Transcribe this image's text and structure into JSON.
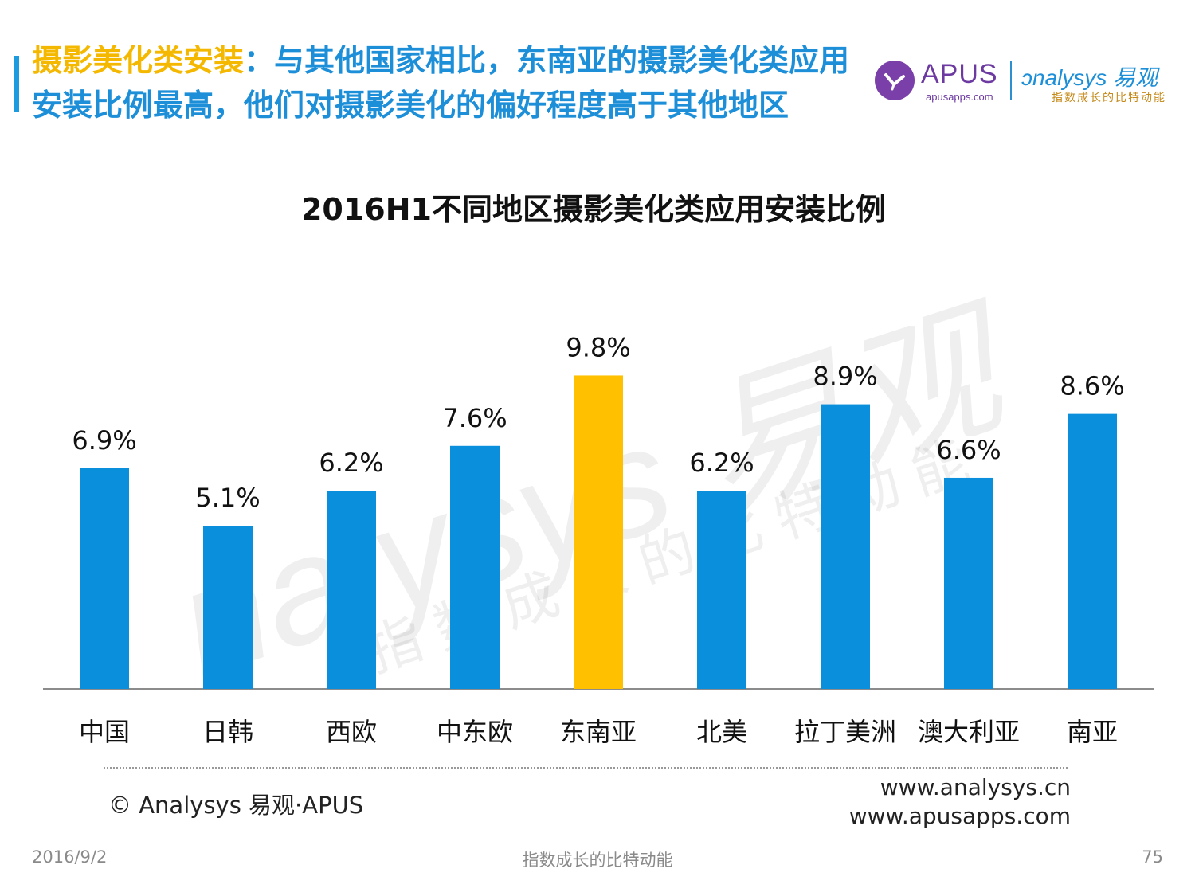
{
  "header": {
    "title_highlight": "摄影美化类安装",
    "title_rest": "：与其他国家相比，东南亚的摄影美化类应用安装比例最高，他们对摄影美化的偏好程度高于其他地区"
  },
  "logos": {
    "apus_name": "APUS",
    "apus_url": "apusapps.com",
    "analysys_name": "nalysys 易观",
    "analysys_slogan": "指数成长的比特动能"
  },
  "watermark": {
    "line1": "nalysys 易观",
    "line2": "指数成长的比特动能"
  },
  "chart_data": {
    "type": "bar",
    "title": "2016H1不同地区摄影美化类应用安装比例",
    "xlabel": "",
    "ylabel": "",
    "categories": [
      "中国",
      "日韩",
      "西欧",
      "中东欧",
      "东南亚",
      "北美",
      "拉丁美洲",
      "澳大利亚",
      "南亚"
    ],
    "values": [
      6.9,
      5.1,
      6.2,
      7.6,
      9.8,
      6.2,
      8.9,
      6.6,
      8.6
    ],
    "labels": [
      "6.9%",
      "5.1%",
      "6.2%",
      "7.6%",
      "9.8%",
      "6.2%",
      "8.9%",
      "6.6%",
      "8.6%"
    ],
    "highlight_index": 4,
    "colors": {
      "bar": "#0a8fdc",
      "highlight": "#ffc000",
      "axis": "#8c8c8c"
    },
    "ylim": [
      0,
      11
    ],
    "grid": false,
    "legend": "none"
  },
  "footer": {
    "copyright": "© Analysys 易观·APUS",
    "website1": "www.analysys.cn",
    "website2": "www.apusapps.com",
    "date": "2016/9/2",
    "slogan": "指数成长的比特动能",
    "page_number": "75"
  }
}
